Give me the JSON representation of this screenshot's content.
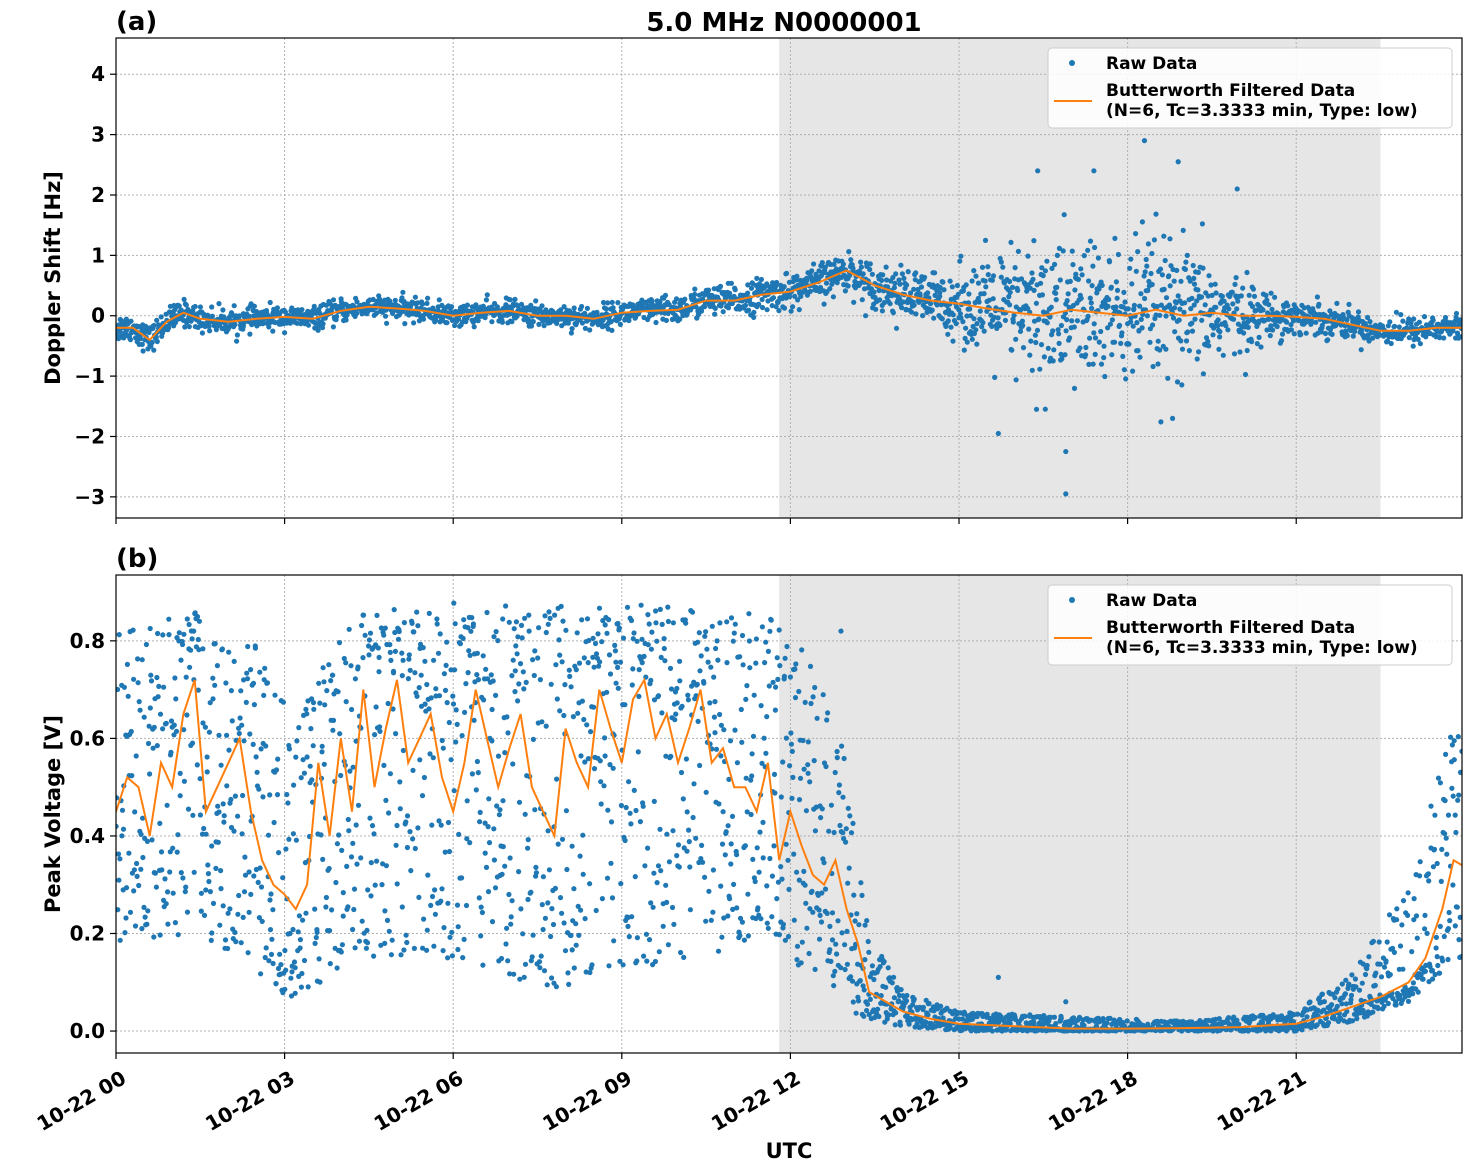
{
  "figure": {
    "title": "5.0 MHz N0000001",
    "xlabel": "UTC"
  },
  "colors": {
    "raw": "#1f77b4",
    "filtered": "#ff7f0e",
    "shade": "#e6e6e6"
  },
  "chart_data": [
    {
      "type": "scatter",
      "panel_label": "(a)",
      "ylabel": "Doppler Shift [Hz]",
      "x_range_hours": [
        0,
        23.95
      ],
      "ylim": [
        -3.35,
        4.6
      ],
      "yticks": [
        -3,
        -2,
        -1,
        0,
        1,
        2,
        3,
        4
      ],
      "ytick_labels": [
        "−3",
        "−2",
        "−1",
        "0",
        "1",
        "2",
        "3",
        "4"
      ],
      "xticks_hours": [
        0,
        3,
        6,
        9,
        12,
        15,
        18,
        21
      ],
      "xtick_labels": [
        "10-22 00",
        "10-22 03",
        "10-22 06",
        "10-22 09",
        "10-22 12",
        "10-22 15",
        "10-22 18",
        "10-22 21"
      ],
      "show_xtick_labels": false,
      "grid": true,
      "shaded_interval_hours": [
        11.8,
        22.5
      ],
      "legend": {
        "placement": "top-right",
        "entries": [
          {
            "label": "Raw Data",
            "marker": "dot"
          },
          {
            "label": "Butterworth Filtered Data",
            "label2": "(N=6, Tc=3.3333 min, Type: low)",
            "marker": "line"
          }
        ]
      },
      "series": [
        {
          "name": "Raw Data",
          "kind": "scatter",
          "spread_profile": [
            [
              0,
              0.25
            ],
            [
              3,
              0.2
            ],
            [
              6,
              0.2
            ],
            [
              9,
              0.22
            ],
            [
              11.5,
              0.3
            ],
            [
              13,
              0.35
            ],
            [
              14.8,
              0.55
            ],
            [
              15.8,
              1.1
            ],
            [
              16.5,
              1.5
            ],
            [
              17.5,
              1.3
            ],
            [
              18.5,
              1.4
            ],
            [
              19.7,
              0.9
            ],
            [
              20.5,
              0.4
            ],
            [
              22,
              0.25
            ],
            [
              23.95,
              0.25
            ]
          ],
          "outliers": [
            {
              "x": 15.7,
              "y": -1.95
            },
            {
              "x": 16.9,
              "y": -2.95
            },
            {
              "x": 16.9,
              "y": -2.25
            },
            {
              "x": 18.3,
              "y": 2.9
            },
            {
              "x": 18.9,
              "y": 2.55
            },
            {
              "x": 19.95,
              "y": 2.1
            },
            {
              "x": 18.8,
              "y": -1.7
            },
            {
              "x": 16.4,
              "y": 2.4
            },
            {
              "x": 17.4,
              "y": 2.4
            }
          ]
        },
        {
          "name": "Butterworth Filtered Data",
          "kind": "line",
          "x": [
            0,
            0.3,
            0.6,
            0.9,
            1.2,
            1.5,
            2,
            2.5,
            3,
            3.5,
            4,
            4.5,
            5,
            5.5,
            6,
            6.5,
            7,
            7.5,
            8,
            8.5,
            9,
            9.5,
            10,
            10.5,
            11,
            11.5,
            12,
            12.5,
            13,
            13.5,
            14,
            14.5,
            15,
            15.5,
            16,
            16.5,
            17,
            17.5,
            18,
            18.5,
            19,
            19.5,
            20,
            20.5,
            21,
            21.5,
            22,
            22.5,
            23,
            23.5,
            23.95
          ],
          "y": [
            -0.2,
            -0.2,
            -0.4,
            -0.1,
            0.05,
            -0.05,
            -0.1,
            -0.05,
            -0.02,
            -0.05,
            0.08,
            0.15,
            0.12,
            0.08,
            0.0,
            0.05,
            0.08,
            0.0,
            0.0,
            -0.05,
            0.05,
            0.08,
            0.1,
            0.25,
            0.25,
            0.35,
            0.4,
            0.55,
            0.75,
            0.5,
            0.35,
            0.25,
            0.2,
            0.12,
            0.05,
            0.0,
            0.1,
            0.05,
            0.0,
            0.1,
            0.0,
            0.05,
            0.0,
            0.0,
            -0.02,
            -0.05,
            -0.15,
            -0.25,
            -0.25,
            -0.2,
            -0.2
          ]
        }
      ]
    },
    {
      "type": "scatter",
      "panel_label": "(b)",
      "ylabel": "Peak Voltage [V]",
      "x_range_hours": [
        0,
        23.95
      ],
      "ylim": [
        -0.045,
        0.935
      ],
      "yticks": [
        0.0,
        0.2,
        0.4,
        0.6,
        0.8
      ],
      "ytick_labels": [
        "0.0",
        "0.2",
        "0.4",
        "0.6",
        "0.8"
      ],
      "xticks_hours": [
        0,
        3,
        6,
        9,
        12,
        15,
        18,
        21
      ],
      "xtick_labels": [
        "10-22 00",
        "10-22 03",
        "10-22 06",
        "10-22 09",
        "10-22 12",
        "10-22 15",
        "10-22 18",
        "10-22 21"
      ],
      "show_xtick_labels": true,
      "grid": true,
      "shaded_interval_hours": [
        11.8,
        22.5
      ],
      "legend": {
        "placement": "top-right",
        "entries": [
          {
            "label": "Raw Data",
            "marker": "dot"
          },
          {
            "label": "Butterworth Filtered Data",
            "label2": "(N=6, Tc=3.3333 min, Type: low)",
            "marker": "line"
          }
        ]
      },
      "series": [
        {
          "name": "Raw Data",
          "kind": "scatter",
          "envelope": [
            [
              0,
              0.18,
              0.82
            ],
            [
              1.5,
              0.2,
              0.86
            ],
            [
              2.5,
              0.12,
              0.8
            ],
            [
              3.2,
              0.05,
              0.62
            ],
            [
              3.8,
              0.1,
              0.78
            ],
            [
              4.5,
              0.15,
              0.87
            ],
            [
              6,
              0.15,
              0.88
            ],
            [
              7.5,
              0.08,
              0.87
            ],
            [
              9,
              0.12,
              0.88
            ],
            [
              10.5,
              0.15,
              0.87
            ],
            [
              11.5,
              0.15,
              0.86
            ],
            [
              12.3,
              0.12,
              0.78
            ],
            [
              12.8,
              0.08,
              0.7
            ],
            [
              13.1,
              0.04,
              0.45
            ],
            [
              13.4,
              0.02,
              0.2
            ],
            [
              14,
              0.01,
              0.08
            ],
            [
              15,
              0.0,
              0.04
            ],
            [
              19,
              0.0,
              0.02
            ],
            [
              21,
              0.0,
              0.04
            ],
            [
              22,
              0.02,
              0.12
            ],
            [
              23,
              0.06,
              0.3
            ],
            [
              23.95,
              0.15,
              0.7
            ]
          ],
          "outliers": [
            {
              "x": 15.7,
              "y": 0.11
            },
            {
              "x": 16.9,
              "y": 0.06
            },
            {
              "x": 12.9,
              "y": 0.82
            }
          ]
        },
        {
          "name": "Butterworth Filtered Data",
          "kind": "line",
          "x": [
            0,
            0.2,
            0.4,
            0.6,
            0.8,
            1.0,
            1.2,
            1.4,
            1.6,
            1.8,
            2.0,
            2.2,
            2.4,
            2.6,
            2.8,
            3.0,
            3.2,
            3.4,
            3.6,
            3.8,
            4.0,
            4.2,
            4.4,
            4.6,
            4.8,
            5.0,
            5.2,
            5.4,
            5.6,
            5.8,
            6.0,
            6.2,
            6.4,
            6.6,
            6.8,
            7.0,
            7.2,
            7.4,
            7.6,
            7.8,
            8.0,
            8.2,
            8.4,
            8.6,
            8.8,
            9.0,
            9.2,
            9.4,
            9.6,
            9.8,
            10.0,
            10.2,
            10.4,
            10.6,
            10.8,
            11.0,
            11.2,
            11.4,
            11.6,
            11.8,
            12.0,
            12.2,
            12.4,
            12.6,
            12.8,
            13.0,
            13.2,
            13.4,
            13.7,
            14.0,
            14.5,
            15.0,
            16.0,
            17.0,
            18.0,
            19.0,
            20.0,
            21.0,
            21.5,
            22.0,
            22.5,
            23.0,
            23.3,
            23.6,
            23.8,
            23.95
          ],
          "y": [
            0.45,
            0.52,
            0.5,
            0.4,
            0.55,
            0.5,
            0.65,
            0.72,
            0.45,
            0.5,
            0.55,
            0.6,
            0.45,
            0.35,
            0.3,
            0.28,
            0.25,
            0.3,
            0.55,
            0.4,
            0.6,
            0.45,
            0.7,
            0.5,
            0.62,
            0.72,
            0.55,
            0.6,
            0.65,
            0.52,
            0.45,
            0.55,
            0.7,
            0.6,
            0.5,
            0.58,
            0.65,
            0.5,
            0.45,
            0.4,
            0.62,
            0.55,
            0.5,
            0.7,
            0.62,
            0.55,
            0.68,
            0.72,
            0.6,
            0.65,
            0.55,
            0.62,
            0.7,
            0.55,
            0.58,
            0.5,
            0.5,
            0.45,
            0.55,
            0.35,
            0.45,
            0.38,
            0.32,
            0.3,
            0.35,
            0.25,
            0.18,
            0.08,
            0.06,
            0.04,
            0.025,
            0.015,
            0.01,
            0.005,
            0.005,
            0.006,
            0.008,
            0.015,
            0.03,
            0.05,
            0.07,
            0.1,
            0.15,
            0.25,
            0.35,
            0.34
          ]
        }
      ]
    }
  ]
}
